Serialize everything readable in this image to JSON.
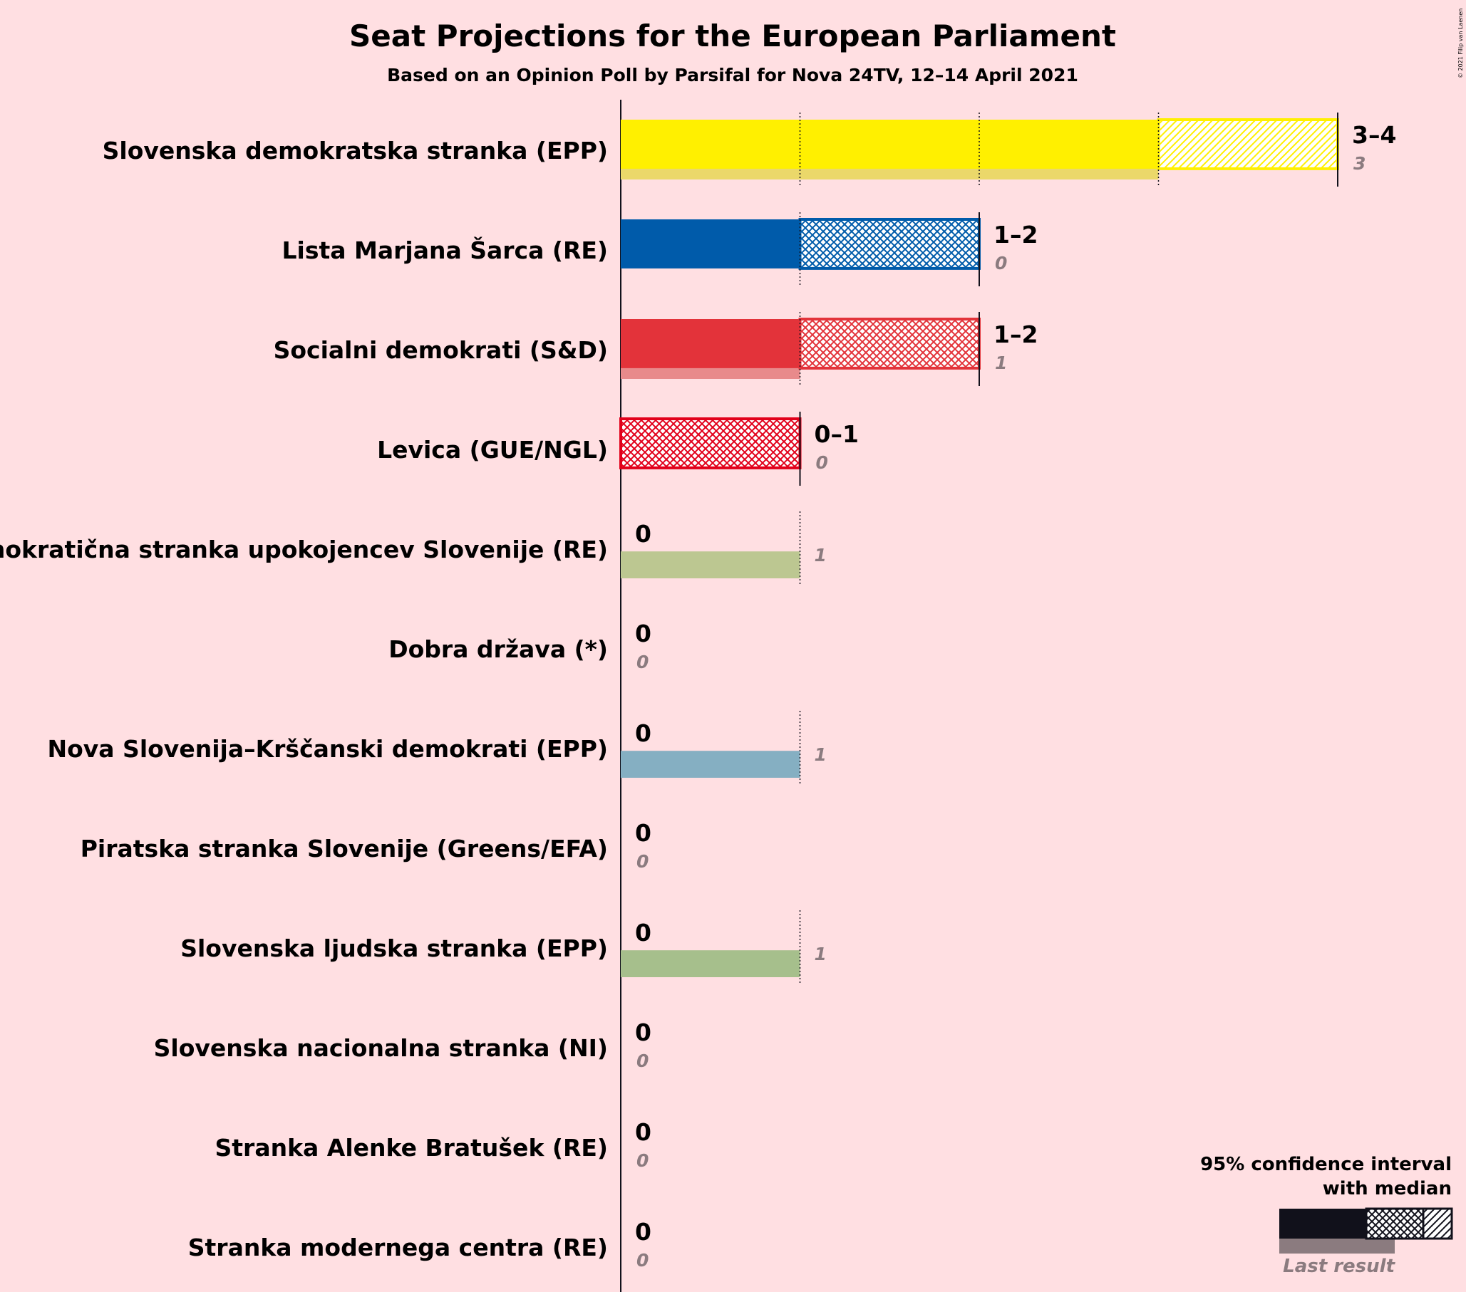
{
  "chart_data": {
    "type": "bar",
    "title": "Seat Projections for the European Parliament",
    "subtitle": "Based on an Opinion Poll by Parsifal for Nova 24TV, 12–14 April 2021",
    "credit": "© 2021 Filip van Laenen",
    "categories": [
      "Slovenska demokratska stranka (EPP)",
      "Lista Marjana Šarca (RE)",
      "Socialni demokrati (S&D)",
      "Levica (GUE/NGL)",
      "Demokratična stranka upokojencev Slovenije (RE)",
      "Dobra država (*)",
      "Nova Slovenija–Krščanski demokrati (EPP)",
      "Piratska stranka Slovenije (Greens/EFA)",
      "Slovenska ljudska stranka (EPP)",
      "Slovenska nacionalna stranka (NI)",
      "Stranka Alenke Bratušek (RE)",
      "Stranka modernega centra (RE)"
    ],
    "series": [
      {
        "name": "95% confidence interval with median",
        "low": [
          3,
          1,
          1,
          0,
          0,
          0,
          0,
          0,
          0,
          0,
          0,
          0
        ],
        "median": [
          3,
          1,
          1,
          0,
          0,
          0,
          0,
          0,
          0,
          0,
          0,
          0
        ],
        "high": [
          4,
          2,
          2,
          1,
          0,
          0,
          0,
          0,
          0,
          0,
          0,
          0
        ]
      },
      {
        "name": "Last result",
        "values": [
          3,
          0,
          1,
          0,
          1,
          0,
          1,
          0,
          1,
          0,
          0,
          0
        ]
      }
    ],
    "range_labels": [
      "3–4",
      "1–2",
      "1–2",
      "0–1",
      "0",
      "0",
      "0",
      "0",
      "0",
      "0",
      "0",
      "0"
    ],
    "last_labels": [
      "3",
      "0",
      "1",
      "0",
      "1",
      "0",
      "1",
      "0",
      "1",
      "0",
      "0",
      "0"
    ],
    "colors": [
      "#FFF000",
      "#005BAA",
      "#E3333A",
      "#E2001A",
      "#BCC791",
      "#999999",
      "#85AFC2",
      "#000000",
      "#A6BF8C",
      "#999999",
      "#999999",
      "#999999"
    ],
    "last_colors": [
      "#EBD86A",
      "#80ADD4",
      "#E88A8B",
      "#E8808A",
      "#BCC791",
      "#CCCCCC",
      "#85AFC2",
      "#888888",
      "#A6BF8C",
      "#CCCCCC",
      "#CCCCCC",
      "#CCCCCC"
    ],
    "xlim": [
      0,
      4
    ],
    "legend": {
      "title_line1": "95% confidence interval",
      "title_line2": "with median",
      "last_label": "Last result",
      "position": "bottom-right"
    }
  }
}
